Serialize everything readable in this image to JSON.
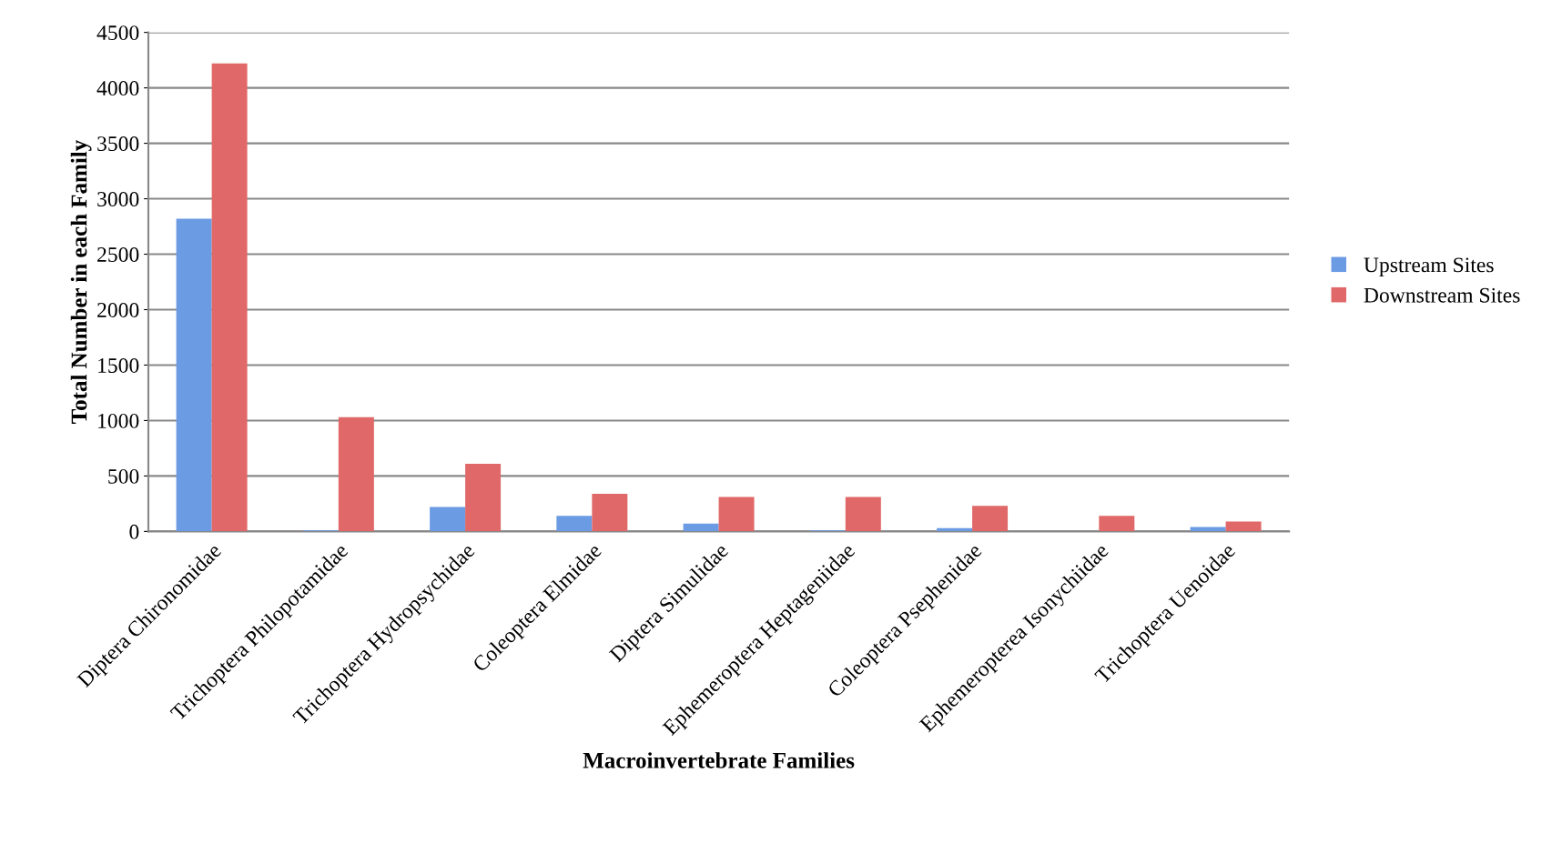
{
  "chart_data": {
    "type": "bar",
    "xlabel": "Macroinvertebrate Families",
    "ylabel": "Total Number in each Family",
    "categories": [
      "Diptera Chironomidae",
      "Trichoptera Philopotamidae",
      "Trichoptera Hydropsychidae",
      "Coleoptera Elmidae",
      "Diptera Simulidae",
      "Ephemeroptera Heptageniidae",
      "Coleoptera Psephenidae",
      "Ephemeropterea Isonychiidae",
      "Trichoptera Uenoidae"
    ],
    "series": [
      {
        "name": "Upstream Sites",
        "color": "#6b9be3",
        "values": [
          2820,
          10,
          220,
          140,
          70,
          10,
          30,
          0,
          40
        ]
      },
      {
        "name": "Downstream Sites",
        "color": "#e06868",
        "values": [
          4220,
          1030,
          610,
          340,
          310,
          310,
          230,
          140,
          90
        ]
      }
    ],
    "ylim": [
      0,
      4500
    ],
    "yticks": [
      0,
      500,
      1000,
      1500,
      2000,
      2500,
      3000,
      3500,
      4000,
      4500
    ],
    "grid": "y",
    "legend": "right"
  }
}
